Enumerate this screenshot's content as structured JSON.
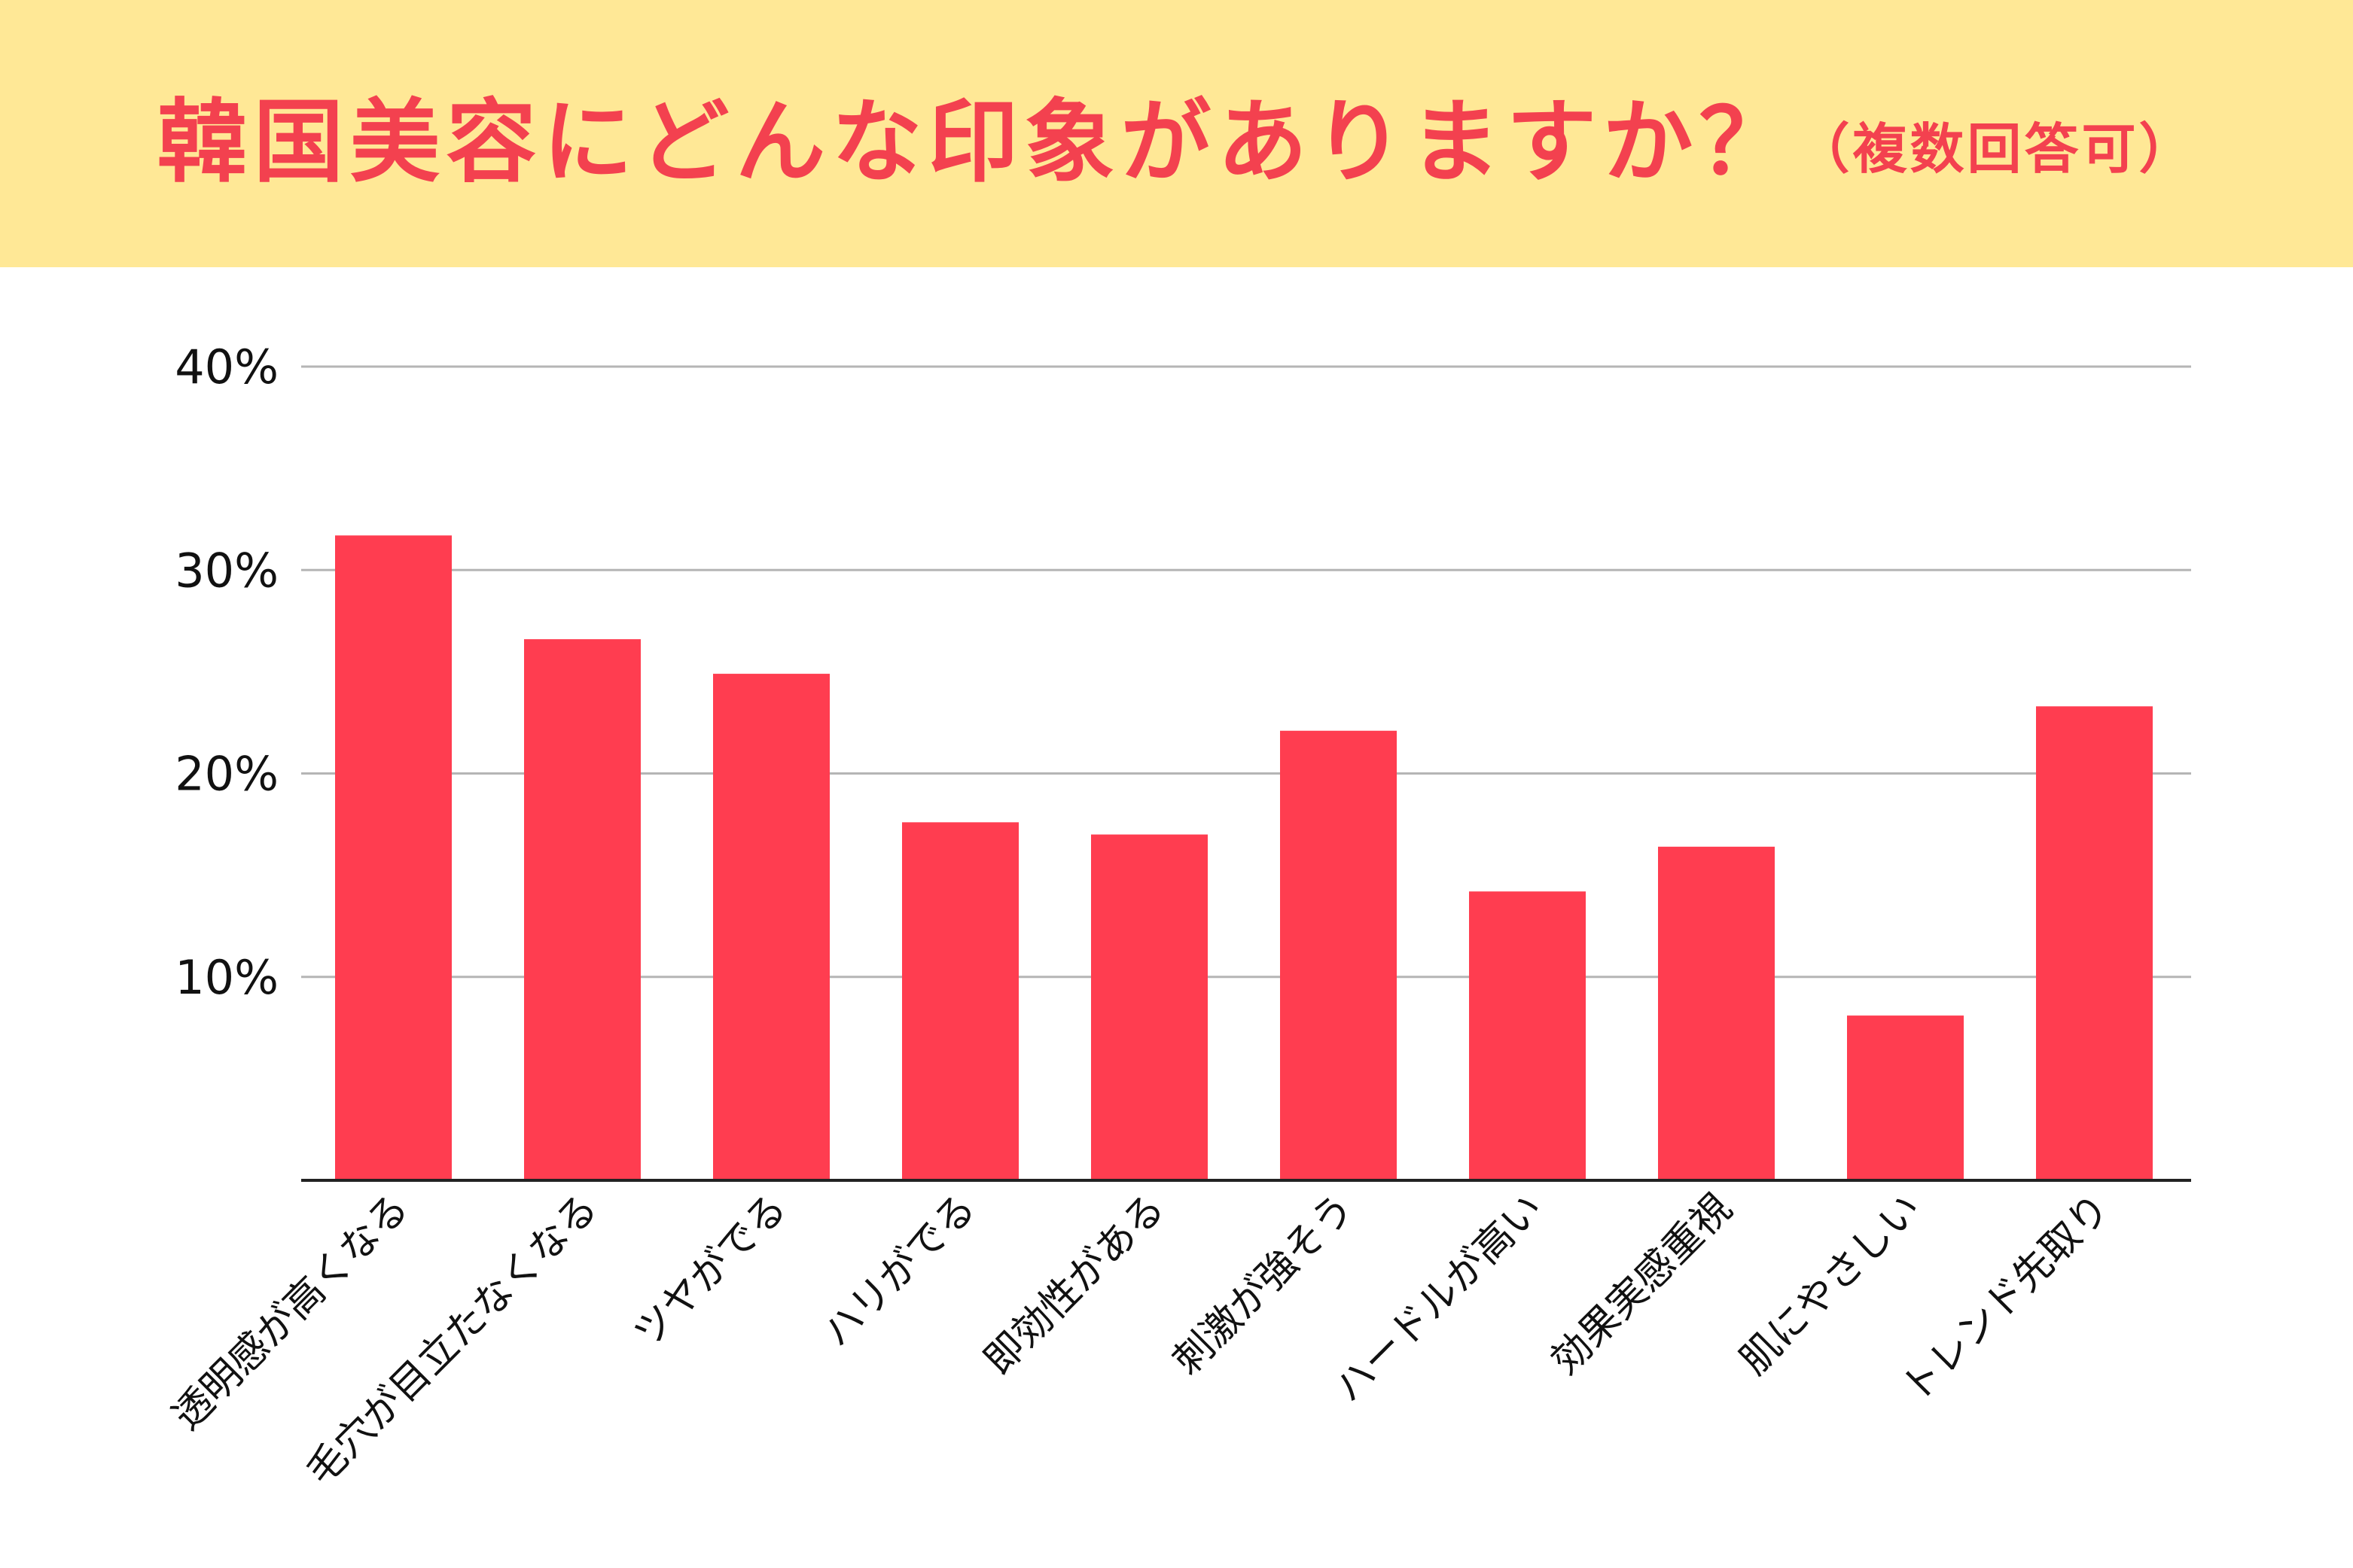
{
  "title": {
    "main": "韓国美容にどんな印象がありますか？",
    "sub": "（複数回答可）"
  },
  "colors": {
    "banner": "#ffe896",
    "title": "#f3414f",
    "bar": "#ff3d50",
    "grid": "#b5b5b5",
    "axis": "#222222"
  },
  "chart_data": {
    "type": "bar",
    "categories": [
      "透明感が高くなる",
      "毛穴が目立たなくなる",
      "ツヤがでる",
      "ハリがでる",
      "即効性がある",
      "刺激が強そう",
      "ハードルが高い",
      "効果実感重視",
      "肌にやさしい",
      "トレンド先取り"
    ],
    "values": [
      31.7,
      26.6,
      24.9,
      17.6,
      17.0,
      22.1,
      14.2,
      16.4,
      8.1,
      23.3
    ],
    "yticks": [
      "10%",
      "20%",
      "30%",
      "40%"
    ],
    "ytick_values": [
      10,
      20,
      30,
      40
    ],
    "ylim": [
      0,
      40
    ],
    "grid": true,
    "legend": false
  }
}
